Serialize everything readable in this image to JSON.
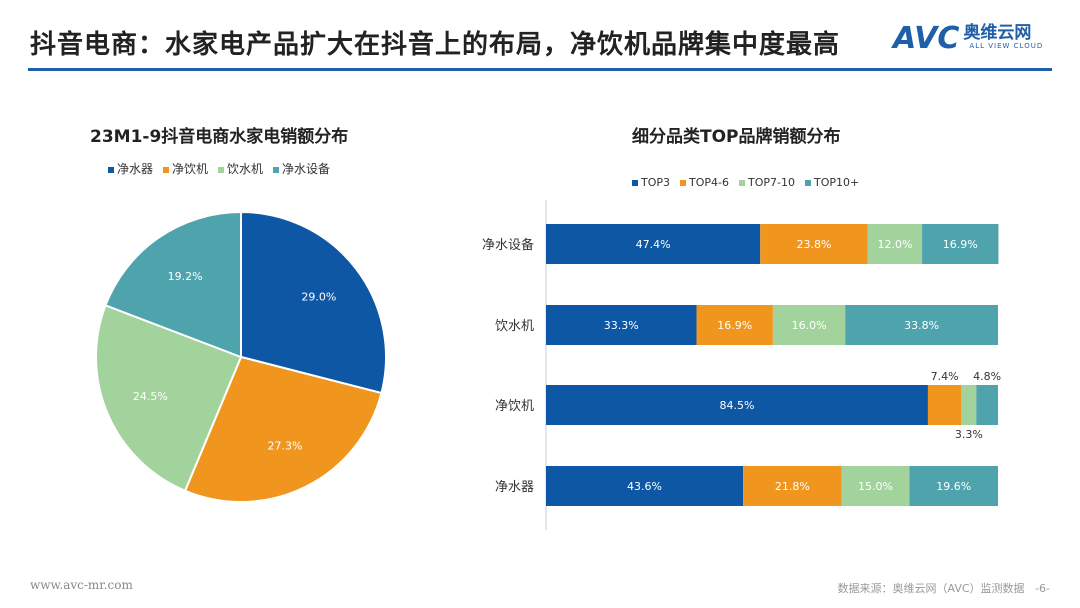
{
  "header": {
    "title": "抖音电商：水家电产品扩大在抖音上的布局，净饮机品牌集中度最高",
    "logo_avc": "AVC",
    "logo_cn": "奥维云网",
    "logo_en": "ALL VIEW CLOUD"
  },
  "footer": {
    "website": "www.avc-mr.com",
    "source": "数据来源：奥维云网（AVC）监测数据",
    "page": "-6-"
  },
  "chart_data": [
    {
      "type": "pie",
      "title": "23M1-9抖音电商水家电销额分布",
      "categories": [
        "净水器",
        "净饮机",
        "饮水机",
        "净水设备"
      ],
      "values": [
        29.0,
        27.3,
        24.5,
        19.2
      ],
      "labels": [
        "29.0%",
        "27.3%",
        "24.5%",
        "19.2%"
      ],
      "colors": [
        "#0e57a4",
        "#f0961f",
        "#a3d39c",
        "#4fa3ac"
      ],
      "legend": "top"
    },
    {
      "type": "bar",
      "stacked": true,
      "orientation": "horizontal",
      "title": "细分品类TOP品牌销额分布",
      "categories": [
        "净水设备",
        "饮水机",
        "净饮机",
        "净水器"
      ],
      "series": [
        {
          "name": "TOP3",
          "values": [
            47.4,
            33.3,
            84.5,
            43.6
          ],
          "color": "#0e57a4"
        },
        {
          "name": "TOP4-6",
          "values": [
            23.8,
            16.9,
            7.4,
            21.8
          ],
          "color": "#f0961f"
        },
        {
          "name": "TOP7-10",
          "values": [
            12.0,
            16.0,
            3.3,
            15.0
          ],
          "color": "#a3d39c"
        },
        {
          "name": "TOP10+",
          "values": [
            16.9,
            33.8,
            4.8,
            19.6
          ],
          "color": "#4fa3ac"
        }
      ],
      "xlim": [
        0,
        100
      ],
      "legend": "top"
    }
  ]
}
